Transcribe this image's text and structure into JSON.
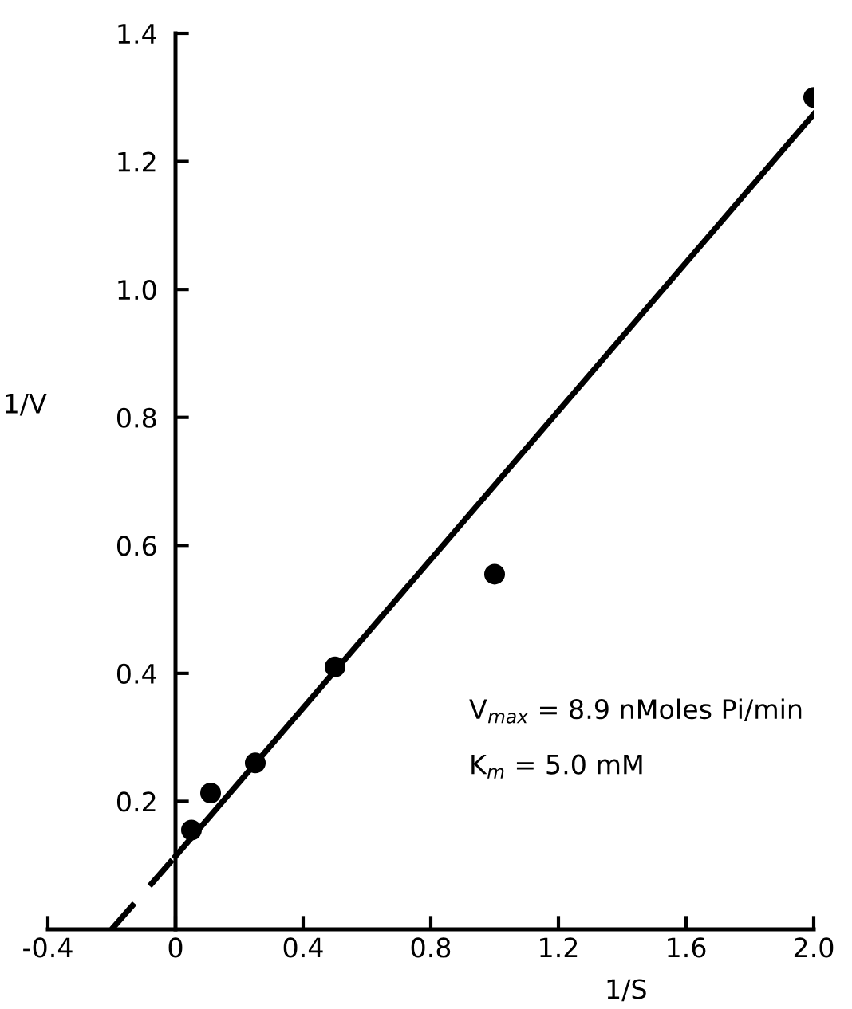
{
  "chart_data": {
    "type": "scatter",
    "xlabel": "1/S",
    "ylabel": "1/V",
    "x": [
      0.05,
      0.11,
      0.25,
      0.5,
      1.0,
      2.0
    ],
    "series": [
      {
        "color": "#000000",
        "marker": "circle",
        "values": [
          0.155,
          0.213,
          0.26,
          0.41,
          0.555,
          1.3
        ]
      },
      {
        "type": "line",
        "color": "#000000",
        "line_style": "solid",
        "marker": "none",
        "x": [
          0,
          2.0
        ],
        "values": [
          0.114,
          1.274
        ]
      },
      {
        "type": "line",
        "color": "#000000",
        "line_style": "dashed",
        "marker": "none",
        "x": [
          -0.2,
          0
        ],
        "values": [
          0,
          0.114
        ]
      }
    ],
    "xlim": [
      -0.4,
      2.0
    ],
    "xticks": [
      -0.4,
      0,
      0.4,
      0.8,
      1.2,
      1.6,
      {
        "value": 2.0,
        "label": "2.0"
      }
    ],
    "ylim": [
      0,
      1.4
    ],
    "yticks": [
      {
        "value": 0.2,
        "label": "0.2"
      },
      {
        "value": 0.4,
        "label": "0.4"
      },
      {
        "value": 0.6,
        "label": "0.6"
      },
      {
        "value": 0.8,
        "label": "0.8"
      },
      {
        "value": 1.0,
        "label": "1.0"
      },
      {
        "value": 1.2,
        "label": "1.2"
      },
      {
        "value": 1.4,
        "label": "1.4"
      }
    ],
    "grid": false,
    "legend": false,
    "annotations": [
      "V$_{max}$ = 8.9 nMoles Pi/min",
      "K$_{m}$ = 5.0 mM"
    ]
  }
}
